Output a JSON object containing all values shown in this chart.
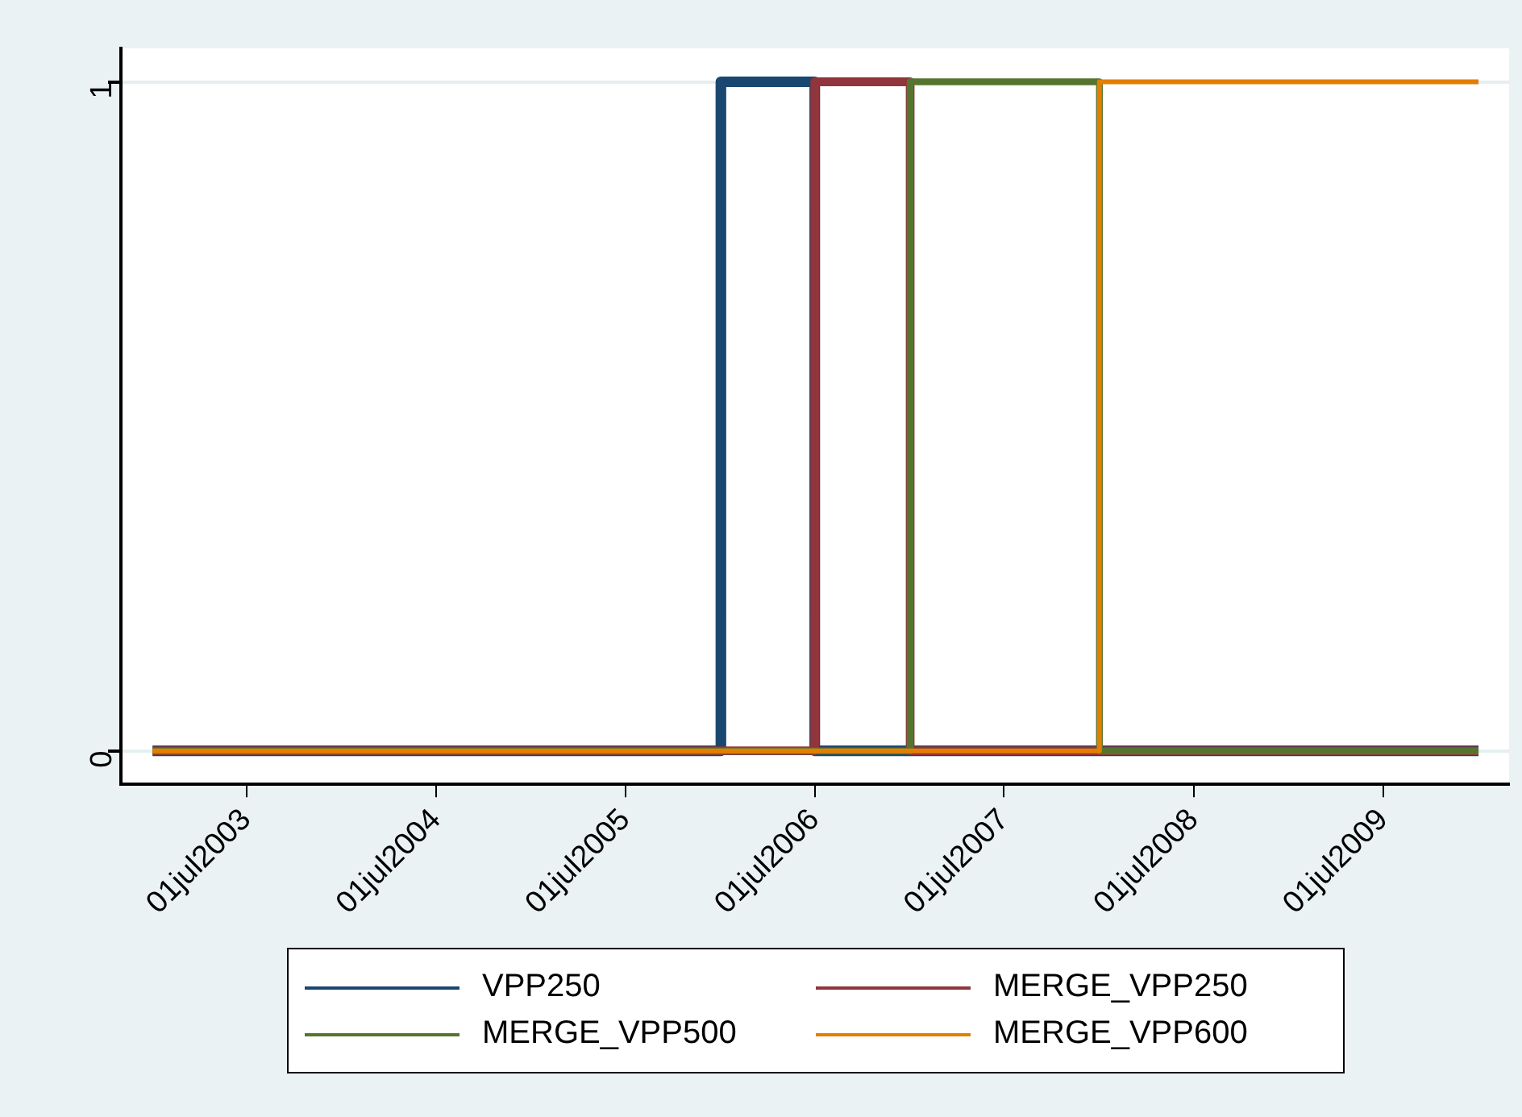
{
  "chart_data": {
    "type": "step",
    "series": [
      {
        "name": "VPP250",
        "color": "#1a476f",
        "x": [
          "2003-01",
          "2006-01",
          "2006-07",
          "2010-01"
        ],
        "values": [
          0,
          1,
          0,
          0
        ]
      },
      {
        "name": "MERGE_VPP250",
        "color": "#90353b",
        "x": [
          "2003-01",
          "2006-07",
          "2007-01",
          "2010-01"
        ],
        "values": [
          0,
          1,
          0,
          0
        ]
      },
      {
        "name": "MERGE_VPP500",
        "color": "#55752f",
        "x": [
          "2003-01",
          "2007-01",
          "2008-01",
          "2010-01"
        ],
        "values": [
          0,
          1,
          0,
          0
        ]
      },
      {
        "name": "MERGE_VPP600",
        "color": "#e37e00",
        "x": [
          "2003-01",
          "2008-01",
          "2010-01"
        ],
        "values": [
          0,
          1,
          1
        ]
      }
    ],
    "xlim": [
      "2002-11",
      "2010-03"
    ],
    "xticks": [
      {
        "value": "2003-07-01",
        "label": "01jul2003"
      },
      {
        "value": "2004-07-01",
        "label": "01jul2004"
      },
      {
        "value": "2005-07-01",
        "label": "01jul2005"
      },
      {
        "value": "2006-07-01",
        "label": "01jul2006"
      },
      {
        "value": "2007-07-01",
        "label": "01jul2007"
      },
      {
        "value": "2008-07-01",
        "label": "01jul2008"
      },
      {
        "value": "2009-07-01",
        "label": "01jul2009"
      }
    ],
    "ylim": [
      -0.05,
      1.05
    ],
    "yticks": [
      0,
      1
    ],
    "grid": "y",
    "legend": "bottom",
    "line_style": "solid",
    "marker": "none"
  }
}
